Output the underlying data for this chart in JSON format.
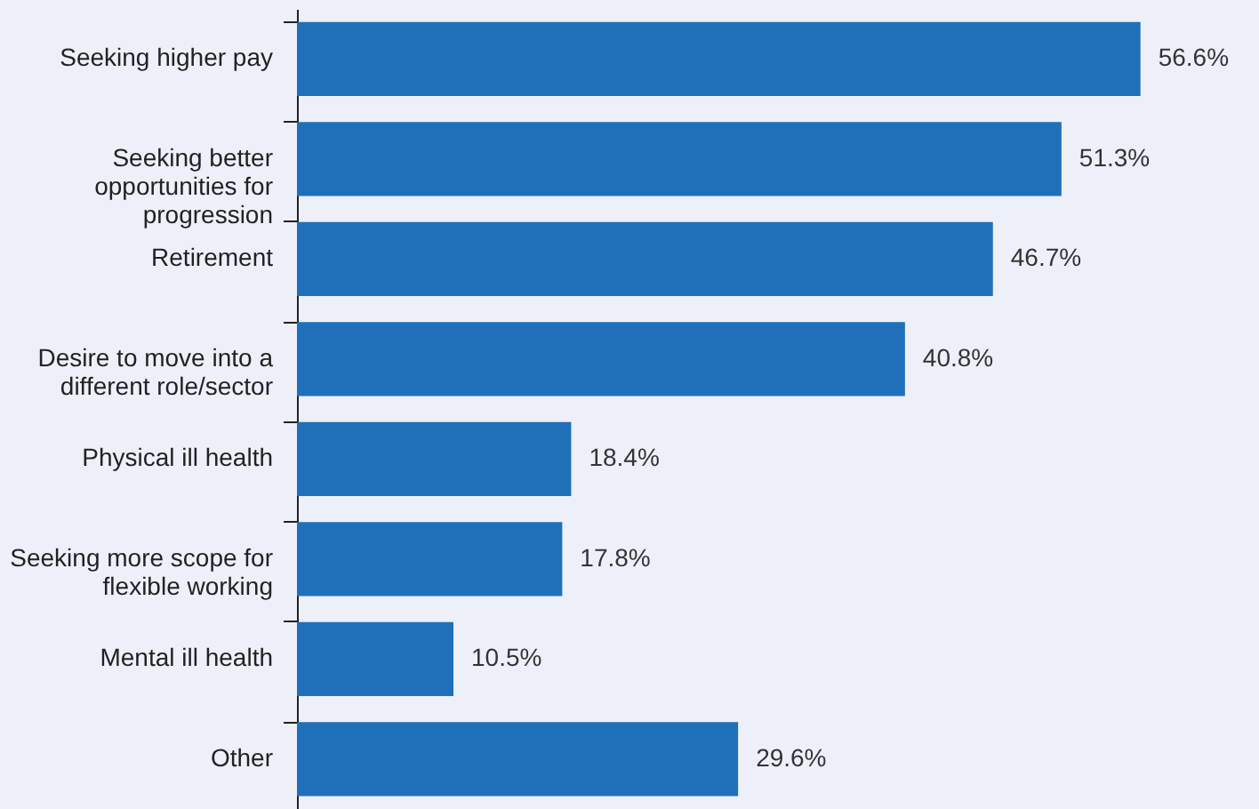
{
  "chart_data": {
    "type": "bar",
    "orientation": "horizontal",
    "categories": [
      "Seeking higher pay",
      "Seeking better opportunities for progression",
      "Retirement",
      "Desire to move into a different role/sector",
      "Physical ill health",
      "Seeking more scope for flexible working",
      "Mental ill health",
      "Other"
    ],
    "values": [
      56.6,
      51.3,
      46.7,
      40.8,
      18.4,
      17.8,
      10.5,
      29.6
    ],
    "value_labels": [
      "56.6%",
      "51.3%",
      "46.7%",
      "40.8%",
      "18.4%",
      "17.8%",
      "10.5%",
      "29.6%"
    ],
    "color": "#1f70b8"
  }
}
